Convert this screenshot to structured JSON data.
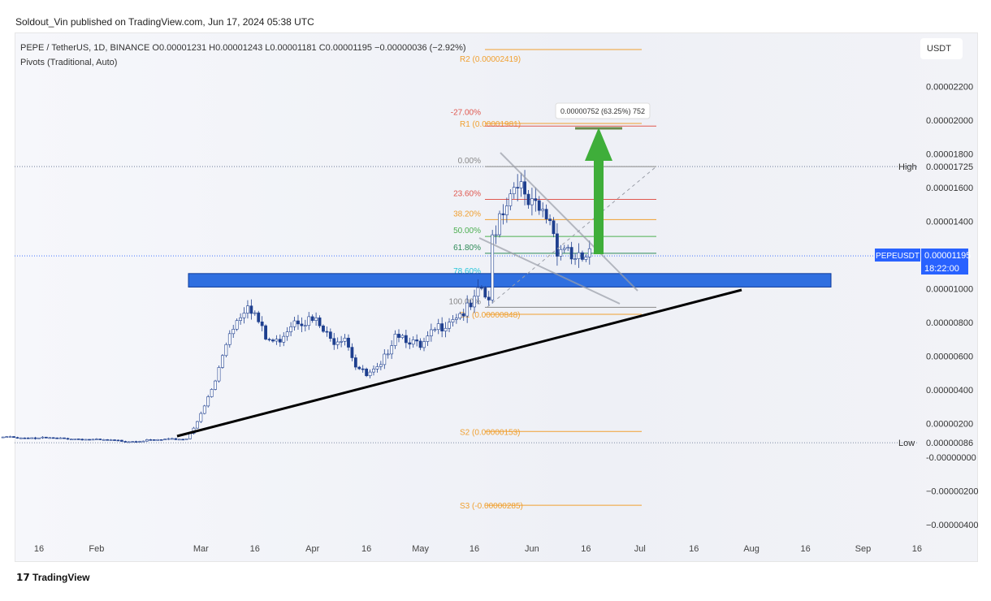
{
  "publisher": "Soldout_Vin published on TradingView.com, Jun 17, 2024 05:38 UTC",
  "legend": {
    "symbol": "PEPE / TetherUS, 1D, BINANCE  O0.00001231  H0.00001243  L0.00001181  C0.00001195  −0.00000036 (−2.92%)",
    "indicator": "Pivots (Traditional, Auto)"
  },
  "currency": "USDT",
  "brand": "TradingView",
  "colors": {
    "up": "#ffffff",
    "down": "#1e3f8f",
    "zone": "#2f6fe0",
    "arrow": "#3fae3a",
    "accent": "#2962ff"
  },
  "chart_data": {
    "type": "candlestick",
    "ylim": [
      -4.5e-06,
      2.48e-05
    ],
    "y_ticks": [
      {
        "v": 2.2e-05,
        "label": "0.00002200"
      },
      {
        "v": 2e-05,
        "label": "0.00002000"
      },
      {
        "v": 1.8e-05,
        "label": "0.00001800"
      },
      {
        "v": 1.6e-05,
        "label": "0.00001600"
      },
      {
        "v": 1.4e-05,
        "label": "0.00001400"
      },
      {
        "v": 1e-05,
        "label": "0.00001000"
      },
      {
        "v": 8e-06,
        "label": "0.00000800"
      },
      {
        "v": 6e-06,
        "label": "0.00000600"
      },
      {
        "v": 4e-06,
        "label": "0.00000400"
      },
      {
        "v": 2e-06,
        "label": "0.00000200"
      },
      {
        "v": 0,
        "label": "-0.00000000"
      },
      {
        "v": -2e-06,
        "label": "−0.00000200"
      },
      {
        "v": -4e-06,
        "label": "−0.00000400"
      }
    ],
    "x_ticks": [
      {
        "d": "2024-01-16",
        "label": "16"
      },
      {
        "d": "2024-02-01",
        "label": "Feb"
      },
      {
        "d": "2024-03-01",
        "label": "Mar"
      },
      {
        "d": "2024-03-16",
        "label": "16"
      },
      {
        "d": "2024-04-01",
        "label": "Apr"
      },
      {
        "d": "2024-04-16",
        "label": "16"
      },
      {
        "d": "2024-05-01",
        "label": "May"
      },
      {
        "d": "2024-05-16",
        "label": "16"
      },
      {
        "d": "2024-06-01",
        "label": "Jun"
      },
      {
        "d": "2024-06-16",
        "label": "16"
      },
      {
        "d": "2024-07-01",
        "label": "Jul"
      },
      {
        "d": "2024-07-16",
        "label": "16"
      },
      {
        "d": "2024-08-01",
        "label": "Aug"
      },
      {
        "d": "2024-08-16",
        "label": "16"
      },
      {
        "d": "2024-09-01",
        "label": "Sep"
      },
      {
        "d": "2024-09-16",
        "label": "16"
      }
    ],
    "close_keypoints": [
      [
        "2024-01-06",
        1.2e-06
      ],
      [
        "2024-01-25",
        1.1e-06
      ],
      [
        "2024-02-10",
        9.5e-07
      ],
      [
        "2024-02-26",
        1.1e-06
      ],
      [
        "2024-03-01",
        2.5e-06
      ],
      [
        "2024-03-05",
        4.5e-06
      ],
      [
        "2024-03-09",
        7.5e-06
      ],
      [
        "2024-03-12",
        8.5e-06
      ],
      [
        "2024-03-14",
        9.3e-06
      ],
      [
        "2024-03-16",
        8.5e-06
      ],
      [
        "2024-03-19",
        7e-06
      ],
      [
        "2024-03-22",
        6.8e-06
      ],
      [
        "2024-03-27",
        8.3e-06
      ],
      [
        "2024-04-02",
        8e-06
      ],
      [
        "2024-04-06",
        6.9e-06
      ],
      [
        "2024-04-10",
        7.3e-06
      ],
      [
        "2024-04-13",
        5.5e-06
      ],
      [
        "2024-04-16",
        4.8e-06
      ],
      [
        "2024-04-20",
        5.3e-06
      ],
      [
        "2024-04-24",
        7.5e-06
      ],
      [
        "2024-04-28",
        7e-06
      ],
      [
        "2024-05-01",
        6.4e-06
      ],
      [
        "2024-05-05",
        7.5e-06
      ],
      [
        "2024-05-10",
        8.4e-06
      ],
      [
        "2024-05-15",
        8.8e-06
      ],
      [
        "2024-05-18",
        1e-05
      ],
      [
        "2024-05-20",
        9e-06
      ],
      [
        "2024-05-21",
        1.3e-05
      ],
      [
        "2024-05-23",
        1.45e-05
      ],
      [
        "2024-05-27",
        1.62e-05
      ],
      [
        "2024-05-28",
        1.68e-05
      ],
      [
        "2024-05-30",
        1.5e-05
      ],
      [
        "2024-06-03",
        1.45e-05
      ],
      [
        "2024-06-06",
        1.42e-05
      ],
      [
        "2024-06-08",
        1.25e-05
      ],
      [
        "2024-06-11",
        1.25e-05
      ],
      [
        "2024-06-13",
        1.15e-05
      ],
      [
        "2024-06-17",
        1.195e-05
      ]
    ],
    "last": {
      "symbol": "PEPEUSDT",
      "price": "0.00001195",
      "countdown": "18:22:00",
      "value": 1.195e-05
    },
    "high": {
      "label": "High",
      "price": "0.00001725",
      "value": 1.725e-05
    },
    "low": {
      "label": "Low",
      "price": "0.00000086",
      "value": 8.6e-07
    },
    "pivots": [
      {
        "label": "R2 (0.00002419)",
        "value": 2.419e-05
      },
      {
        "label": "R1 (0.00001981)",
        "value": 1.981e-05
      },
      {
        "label": "S1 (0.00000848)",
        "value": 8.48e-06
      },
      {
        "label": "S2 (0.00000153)",
        "value": 1.53e-06
      },
      {
        "label": "S3 (-0.00000285)",
        "value": -2.85e-06
      }
    ],
    "fib": [
      {
        "label": "-27.00%",
        "value": 1.965e-05,
        "color": "#e0584f"
      },
      {
        "label": "0.00%",
        "value": 1.725e-05,
        "color": "#888888"
      },
      {
        "label": "23.60%",
        "value": 1.53e-05,
        "color": "#e0584f"
      },
      {
        "label": "38.20%",
        "value": 1.41e-05,
        "color": "#f0a030"
      },
      {
        "label": "50.00%",
        "value": 1.31e-05,
        "color": "#4caf50"
      },
      {
        "label": "61.80%",
        "value": 1.21e-05,
        "color": "#2e8b57"
      },
      {
        "label": "78.60%",
        "value": 1.07e-05,
        "color": "#26c6da"
      },
      {
        "label": "100.00%",
        "value": 8.9e-06,
        "color": "#888888"
      }
    ],
    "measure": "0.00000752 (63.25%) 752",
    "support_zone": [
      1.01e-05,
      1.09e-05
    ]
  }
}
